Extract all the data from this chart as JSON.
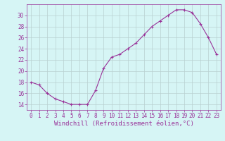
{
  "x": [
    0,
    1,
    2,
    3,
    4,
    5,
    6,
    7,
    8,
    9,
    10,
    11,
    12,
    13,
    14,
    15,
    16,
    17,
    18,
    19,
    20,
    21,
    22,
    23
  ],
  "y": [
    18,
    17.5,
    16,
    15,
    14.5,
    14,
    14,
    14,
    16.5,
    20.5,
    22.5,
    23,
    24,
    25,
    26.5,
    28,
    29,
    30,
    31,
    31,
    30.5,
    28.5,
    26,
    23
  ],
  "line_color": "#993399",
  "marker": "+",
  "bg_color": "#d6f5f5",
  "grid_color": "#b8d0d0",
  "xlabel": "Windchill (Refroidissement éolien,°C)",
  "xlim": [
    -0.5,
    23.5
  ],
  "ylim": [
    13,
    32
  ],
  "yticks": [
    14,
    16,
    18,
    20,
    22,
    24,
    26,
    28,
    30
  ],
  "xtick_labels": [
    "0",
    "1",
    "2",
    "3",
    "4",
    "5",
    "6",
    "7",
    "8",
    "9",
    "10",
    "11",
    "12",
    "13",
    "14",
    "15",
    "16",
    "17",
    "18",
    "19",
    "20",
    "21",
    "22",
    "23"
  ],
  "tick_fontsize": 5.5,
  "label_fontsize": 6.5
}
